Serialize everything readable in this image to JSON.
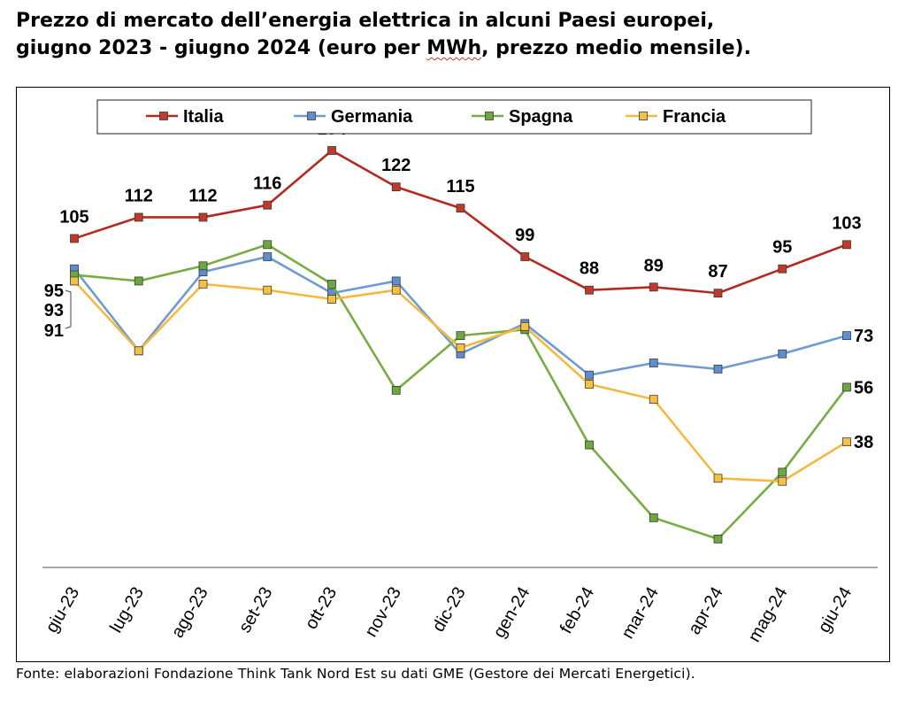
{
  "title_line1": "Prezzo di mercato dell’energia elettrica in alcuni Paesi europei,",
  "title_line2_a": "giugno 2023 - giugno 2024 (euro per ",
  "title_line2_unit": "MWh",
  "title_line2_b": ", prezzo medio mensile).",
  "source": "Fonte: elaborazioni Fondazione Think Tank Nord Est su dati GME (Gestore dei Mercati Energetici).",
  "chart_data": {
    "type": "line",
    "categories": [
      "giu-23",
      "lug-23",
      "ago-23",
      "set-23",
      "ott-23",
      "nov-23",
      "dic-23",
      "gen-24",
      "feb-24",
      "mar-24",
      "apr-24",
      "mag-24",
      "giu-24"
    ],
    "series": [
      {
        "name": "Italia",
        "color": "#b52a1f",
        "marker": "#c0392b",
        "values": [
          105,
          112,
          112,
          116,
          134,
          122,
          115,
          99,
          88,
          89,
          87,
          95,
          103
        ],
        "labels": [
          "105",
          "112",
          "112",
          "116",
          "134",
          "122",
          "115",
          "99",
          "88",
          "89",
          "87",
          "95",
          "103"
        ]
      },
      {
        "name": "Germania",
        "color": "#6f9bd1",
        "marker": "#5b8fd0",
        "values": [
          95,
          68,
          94,
          99,
          87,
          91,
          67,
          77,
          60,
          64,
          62,
          67,
          73
        ],
        "labels": [
          "95",
          "",
          "",
          "",
          "",
          "",
          "",
          "",
          "",
          "",
          "",
          "",
          "73"
        ]
      },
      {
        "name": "Spagna",
        "color": "#7aac45",
        "marker": "#6ea73d",
        "values": [
          93,
          91,
          96,
          103,
          90,
          55,
          73,
          75,
          37,
          13,
          6,
          28,
          56
        ],
        "labels": [
          "93",
          "",
          "",
          "",
          "",
          "",
          "",
          "",
          "",
          "",
          "",
          "",
          "56"
        ]
      },
      {
        "name": "Francia",
        "color": "#f5b942",
        "marker": "#f8c040",
        "values": [
          91,
          68,
          90,
          88,
          85,
          88,
          69,
          76,
          57,
          52,
          26,
          25,
          38
        ],
        "labels": [
          "91",
          "",
          "",
          "",
          "",
          "",
          "",
          "",
          "",
          "",
          "",
          "",
          "38"
        ]
      }
    ],
    "ylim": [
      -6,
      155
    ],
    "grid": false,
    "legend": "top"
  }
}
